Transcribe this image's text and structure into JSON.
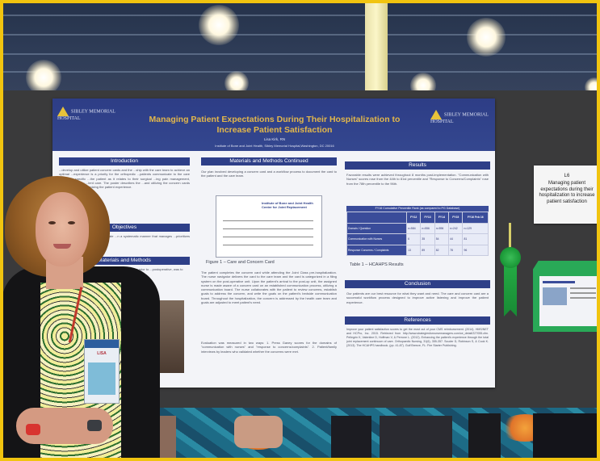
{
  "poster": {
    "logo_left": "SIBLEY MEMORIAL HOSPITAL",
    "logo_right": "SIBLEY MEMORIAL HOSPITAL",
    "title": "Managing Patient Expectations During Their Hospitalization to Increase Patient Satisfaction",
    "author": "Lisa Kirk, RN",
    "affiliation": "Institute of Bone and Joint Health, Sibley Memorial Hospital,Washington, DC 20016",
    "sections": {
      "introduction": "Introduction",
      "objectives": "Objectives",
      "materials_methods": "Materials and Methods",
      "materials_methods_continued": "Materials and Methods Continued",
      "results": "Results",
      "conclusion": "Conclusion",
      "references": "References"
    },
    "intro_text": "...develop and utilize patient concern cards and the ...ship with the care team to achieve an optimal ...experience is a priority for the orthopedic ...patients communicate to the care team any specific ...the patient as it relates to their surgical ...ing pain management, mobility, recovery ...ient care. The poster describes the ...and utilizing the concern cards and ...the goal of optimizing the patient experience.",
    "objectives_text": "...in order to understand and mitigate ...n a systematic manner that manages ...prioritizes their experience.",
    "methods_text": "...regarding rounds and ...previous years, we ...patients prior to ...postoperative, was to",
    "continued_text_1": "Our plan involved developing a concern card and a workflow process to document the card to the patient and the care team.",
    "card_header": "Institute of Bone and Joint Health Center for Joint Replacement",
    "card_caption": "Figure 1 – Care and Concern Card",
    "continued_text_2": "The patient completes the concern card while attending the Joint Class pre-hospitalization. The nurse navigator delivers the card to the care team and the card is categorized in a filing system on the post-operative unit. Upon the patient's arrival to the post-op unit, the assigned nurse is made aware of a concern card on an established communication process, utilizing a communication board. The nurse collaborates with the patient to review concerns, establish goals to address the concern, and write the goals on the patient's bedside communication board. Throughout the hospitalization, the concern is addressed by the health care team and goals are adjusted to meet patient's need.",
    "evaluation_text": "Evaluation was measured in two ways: 1. Press Ganey scores for the domains of \"communication with nurses\" and \"response to concerns/complaints\". 2. Patient/family interviews by leaders who validated whether the concerns were met.",
    "results_text": "Favorable results were achieved throughout 8 months post-implementation. \"Communication with Nurses\" scores rose from the 44th to 81st percentile and \"Response to Concerns/Complaints\" rose from the 78th percentile to the 96th.",
    "table_title": "FY16 Cumulative Percentile Rank (as compared to PG Database)",
    "table_headers": [
      "",
      "FY12",
      "FY13",
      "FY14",
      "FY15",
      "FY16 Feb 16"
    ],
    "table_rows": [
      [
        "Domain / Question",
        "n=584",
        "n=556",
        "n=596",
        "n=242",
        "n=129"
      ],
      [
        "Communication with Nurses",
        "6",
        "35",
        "54",
        "44",
        "81"
      ],
      [
        "Response Concerns / Complaints",
        "13",
        "89",
        "82",
        "78",
        "96"
      ]
    ],
    "table_caption": "Table 1 – HCAHPS Results",
    "conclusion_text": "Our patients are our best resource for what they want and need. The care and concern card are a successful workflow process designed to improve active listening and improve the patient experience.",
    "references_text": "Improve your patient satisfaction scores to get the most out of your CMS reimbursement. (2014). HMS/NET and HCPro, Inc. 2015. Retrieved from http://www.strategiesfornursemanagers.com/ce_detail/227055.cfm. Pellegrin K, Valentine D, Hoffman V, & Perrone L. (2012). Enhancing the patient's experience through the total joint replacement continuum of care. Orthopaedic Nursing, 31(6), 355-357. Scuder D, Robinson S, & Cook K. (2013). The HCAHPS handbook. (pp. 41-87). Gulf Breeze, FL: Fire Starter Publishing."
  },
  "sign": {
    "id": "L6",
    "text": "Managing patient expectations during their hospitalization to increase patient satisfaction"
  },
  "badge": {
    "name": "LISA"
  },
  "colors": {
    "poster_header": "#2e3f88",
    "poster_title": "#e3b74a",
    "frame": "#f1c40f",
    "ribbon": "#1f9e3c",
    "holder": "#29a957"
  }
}
